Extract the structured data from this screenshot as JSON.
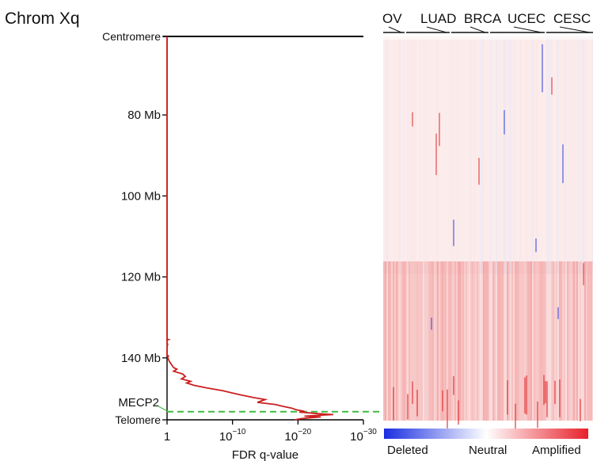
{
  "panel_title": "Chrom Xq",
  "chart_data": {
    "type": "line",
    "orientation": "vertical-genomic",
    "title": "Chrom Xq",
    "xlabel": "FDR q-value",
    "x_scale": "log",
    "x_ticks": [
      {
        "exp": 0,
        "label": "1",
        "sup": ""
      },
      {
        "exp": -10,
        "label": "10",
        "sup": "−10"
      },
      {
        "exp": -20,
        "label": "10",
        "sup": "−20"
      },
      {
        "exp": -30,
        "label": "10",
        "sup": "−30"
      }
    ],
    "ylim_mb": [
      60.6,
      155.3
    ],
    "y_ticks": [
      {
        "mb": 60.6,
        "label": "Centromere"
      },
      {
        "mb": 80,
        "label": "80 Mb"
      },
      {
        "mb": 100,
        "label": "100 Mb"
      },
      {
        "mb": 120,
        "label": "120 Mb"
      },
      {
        "mb": 140,
        "label": "140 Mb"
      },
      {
        "mb": 155.3,
        "label": "Telomere"
      }
    ],
    "series": [
      {
        "color": "#cc1f1f",
        "points": [
          [
            60.6,
            0
          ],
          [
            132,
            0
          ],
          [
            135.4,
            0
          ],
          [
            135.5,
            -0.2
          ],
          [
            135.6,
            0
          ],
          [
            136.5,
            0
          ],
          [
            136.6,
            -0.1
          ],
          [
            137.2,
            0
          ],
          [
            139.4,
            0
          ],
          [
            139.5,
            -0.2
          ],
          [
            140,
            -0.1
          ],
          [
            141,
            -0.4
          ],
          [
            142.4,
            -1.0
          ],
          [
            142.8,
            -1.5
          ],
          [
            143.3,
            -1.0
          ],
          [
            144,
            -2.4
          ],
          [
            144.6,
            -2.8
          ],
          [
            145.2,
            -2.2
          ],
          [
            145.8,
            -3.6
          ],
          [
            146.2,
            -3.0
          ],
          [
            146.8,
            -4.2
          ],
          [
            147.4,
            -6.0
          ],
          [
            148.1,
            -8.5
          ],
          [
            149,
            -10.8
          ],
          [
            149.8,
            -13.2
          ],
          [
            150.3,
            -15.0
          ],
          [
            151,
            -13.8
          ],
          [
            151.5,
            -16.5
          ],
          [
            152,
            -17.8
          ],
          [
            152.4,
            -19.0
          ],
          [
            152.8,
            -19.7
          ],
          [
            153.2,
            -21.0
          ],
          [
            153.4,
            -20.2
          ],
          [
            153.6,
            -21.8
          ],
          [
            153.8,
            -23.2
          ],
          [
            154,
            -25.4
          ],
          [
            154.2,
            -23.0
          ],
          [
            154.4,
            -21.0
          ],
          [
            154.6,
            -23.5
          ],
          [
            154.8,
            -22.0
          ],
          [
            155,
            -20.5
          ],
          [
            155.3,
            -19.5
          ]
        ]
      }
    ],
    "annotations": [
      {
        "label": "MECP2",
        "mb": 153.3
      }
    ],
    "reference_line": {
      "mb": 153.3,
      "style": "dashed",
      "color": "#3dbb3d"
    }
  },
  "heatmap": {
    "cohorts": [
      "OV",
      "LUAD",
      "BRCA",
      "UCEC",
      "CESC"
    ],
    "colorbar": {
      "low_label": "Deleted",
      "mid_label": "Neutral",
      "high_label": "Amplified",
      "low_color": "#1a2ee0",
      "mid_color": "#ffffff",
      "high_color": "#e8202a"
    }
  }
}
